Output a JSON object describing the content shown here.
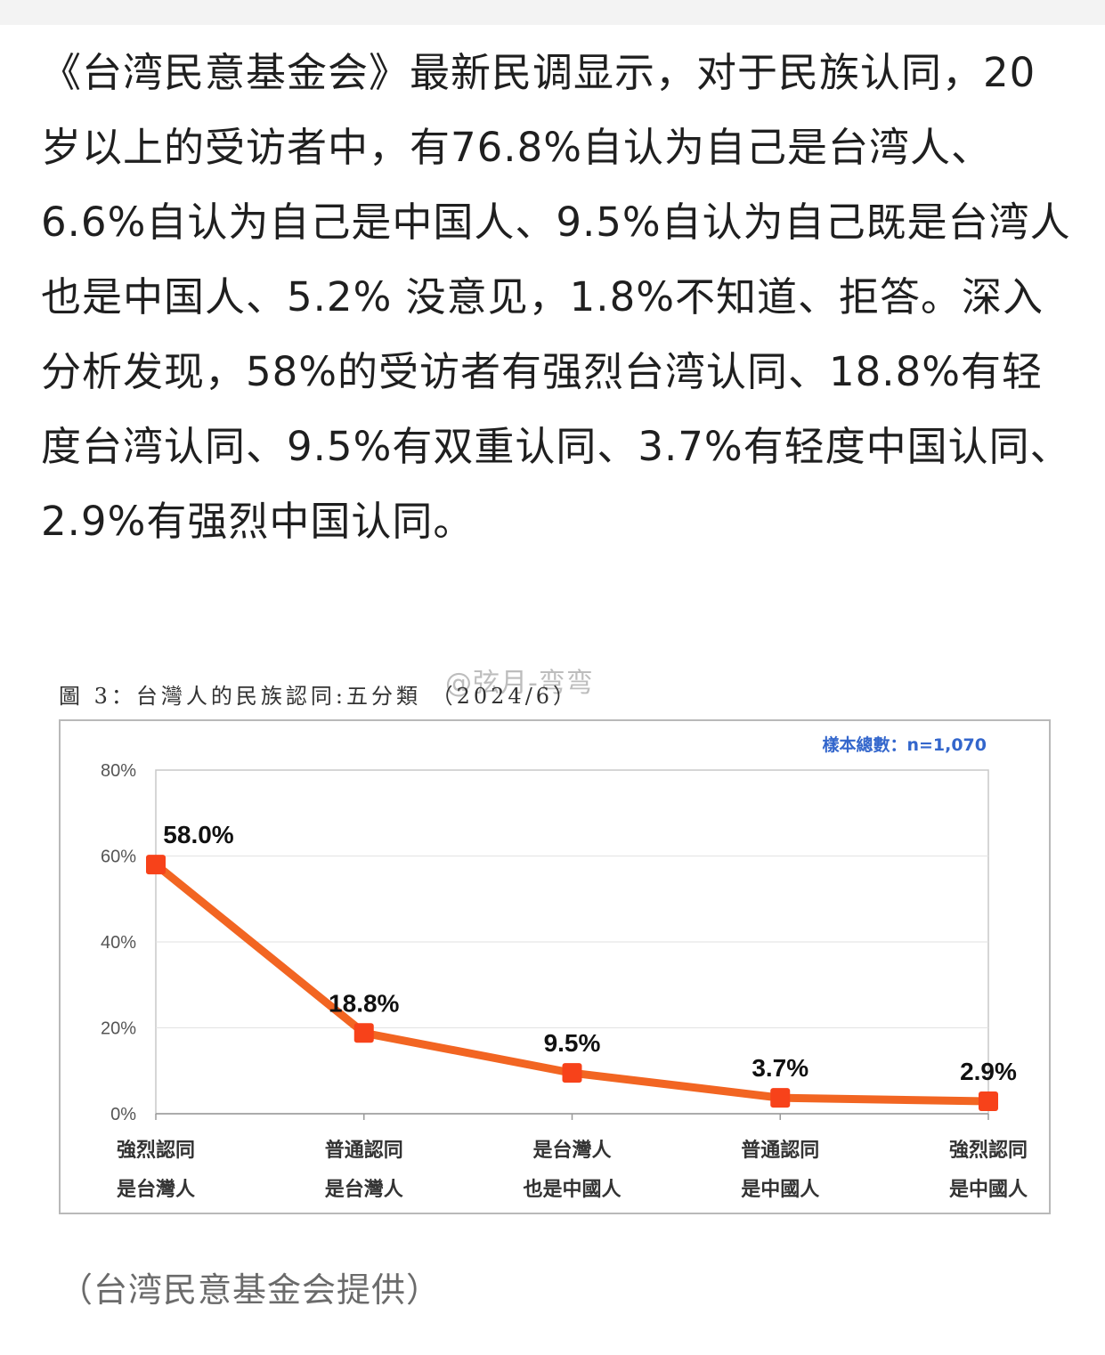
{
  "article": {
    "paragraph": "《台湾民意基金会》最新民调显示，对于民族认同，20岁以上的受访者中，有76.8%自认为自己是台湾人、6.6%自认为自己是中国人、9.5%自认为自己既是台湾人也是中国人、5.2% 没意见，1.8%不知道、拒答。深入分析发现，58%的受访者有强烈台湾认同、18.8%有轻度台湾认同、9.5%有双重认同、3.7%有轻度中国认同、2.9%有强烈中国认同。",
    "caption": "（台湾民意基金会提供）"
  },
  "watermark": "@弦月-弯弯",
  "chart_data": {
    "type": "line",
    "title": "圖 3：台灣人的民族認同:五分類 （2024/6）",
    "sample_note": "樣本總數：n=1,070",
    "categories": [
      [
        "強烈認同",
        "是台灣人"
      ],
      [
        "普通認同",
        "是台灣人"
      ],
      [
        "是台灣人",
        "也是中國人"
      ],
      [
        "普通認同",
        "是中國人"
      ],
      [
        "強烈認同",
        "是中國人"
      ]
    ],
    "values": [
      58.0,
      18.8,
      9.5,
      3.7,
      2.9
    ],
    "data_labels": [
      "58.0%",
      "18.8%",
      "9.5%",
      "3.7%",
      "2.9%"
    ],
    "yticks": [
      "0%",
      "20%",
      "40%",
      "60%",
      "80%"
    ],
    "ylim": [
      0,
      80
    ],
    "grid": true,
    "line_color": "#f26522",
    "marker_color": "#f7421a",
    "note_color": "#3366cc"
  }
}
